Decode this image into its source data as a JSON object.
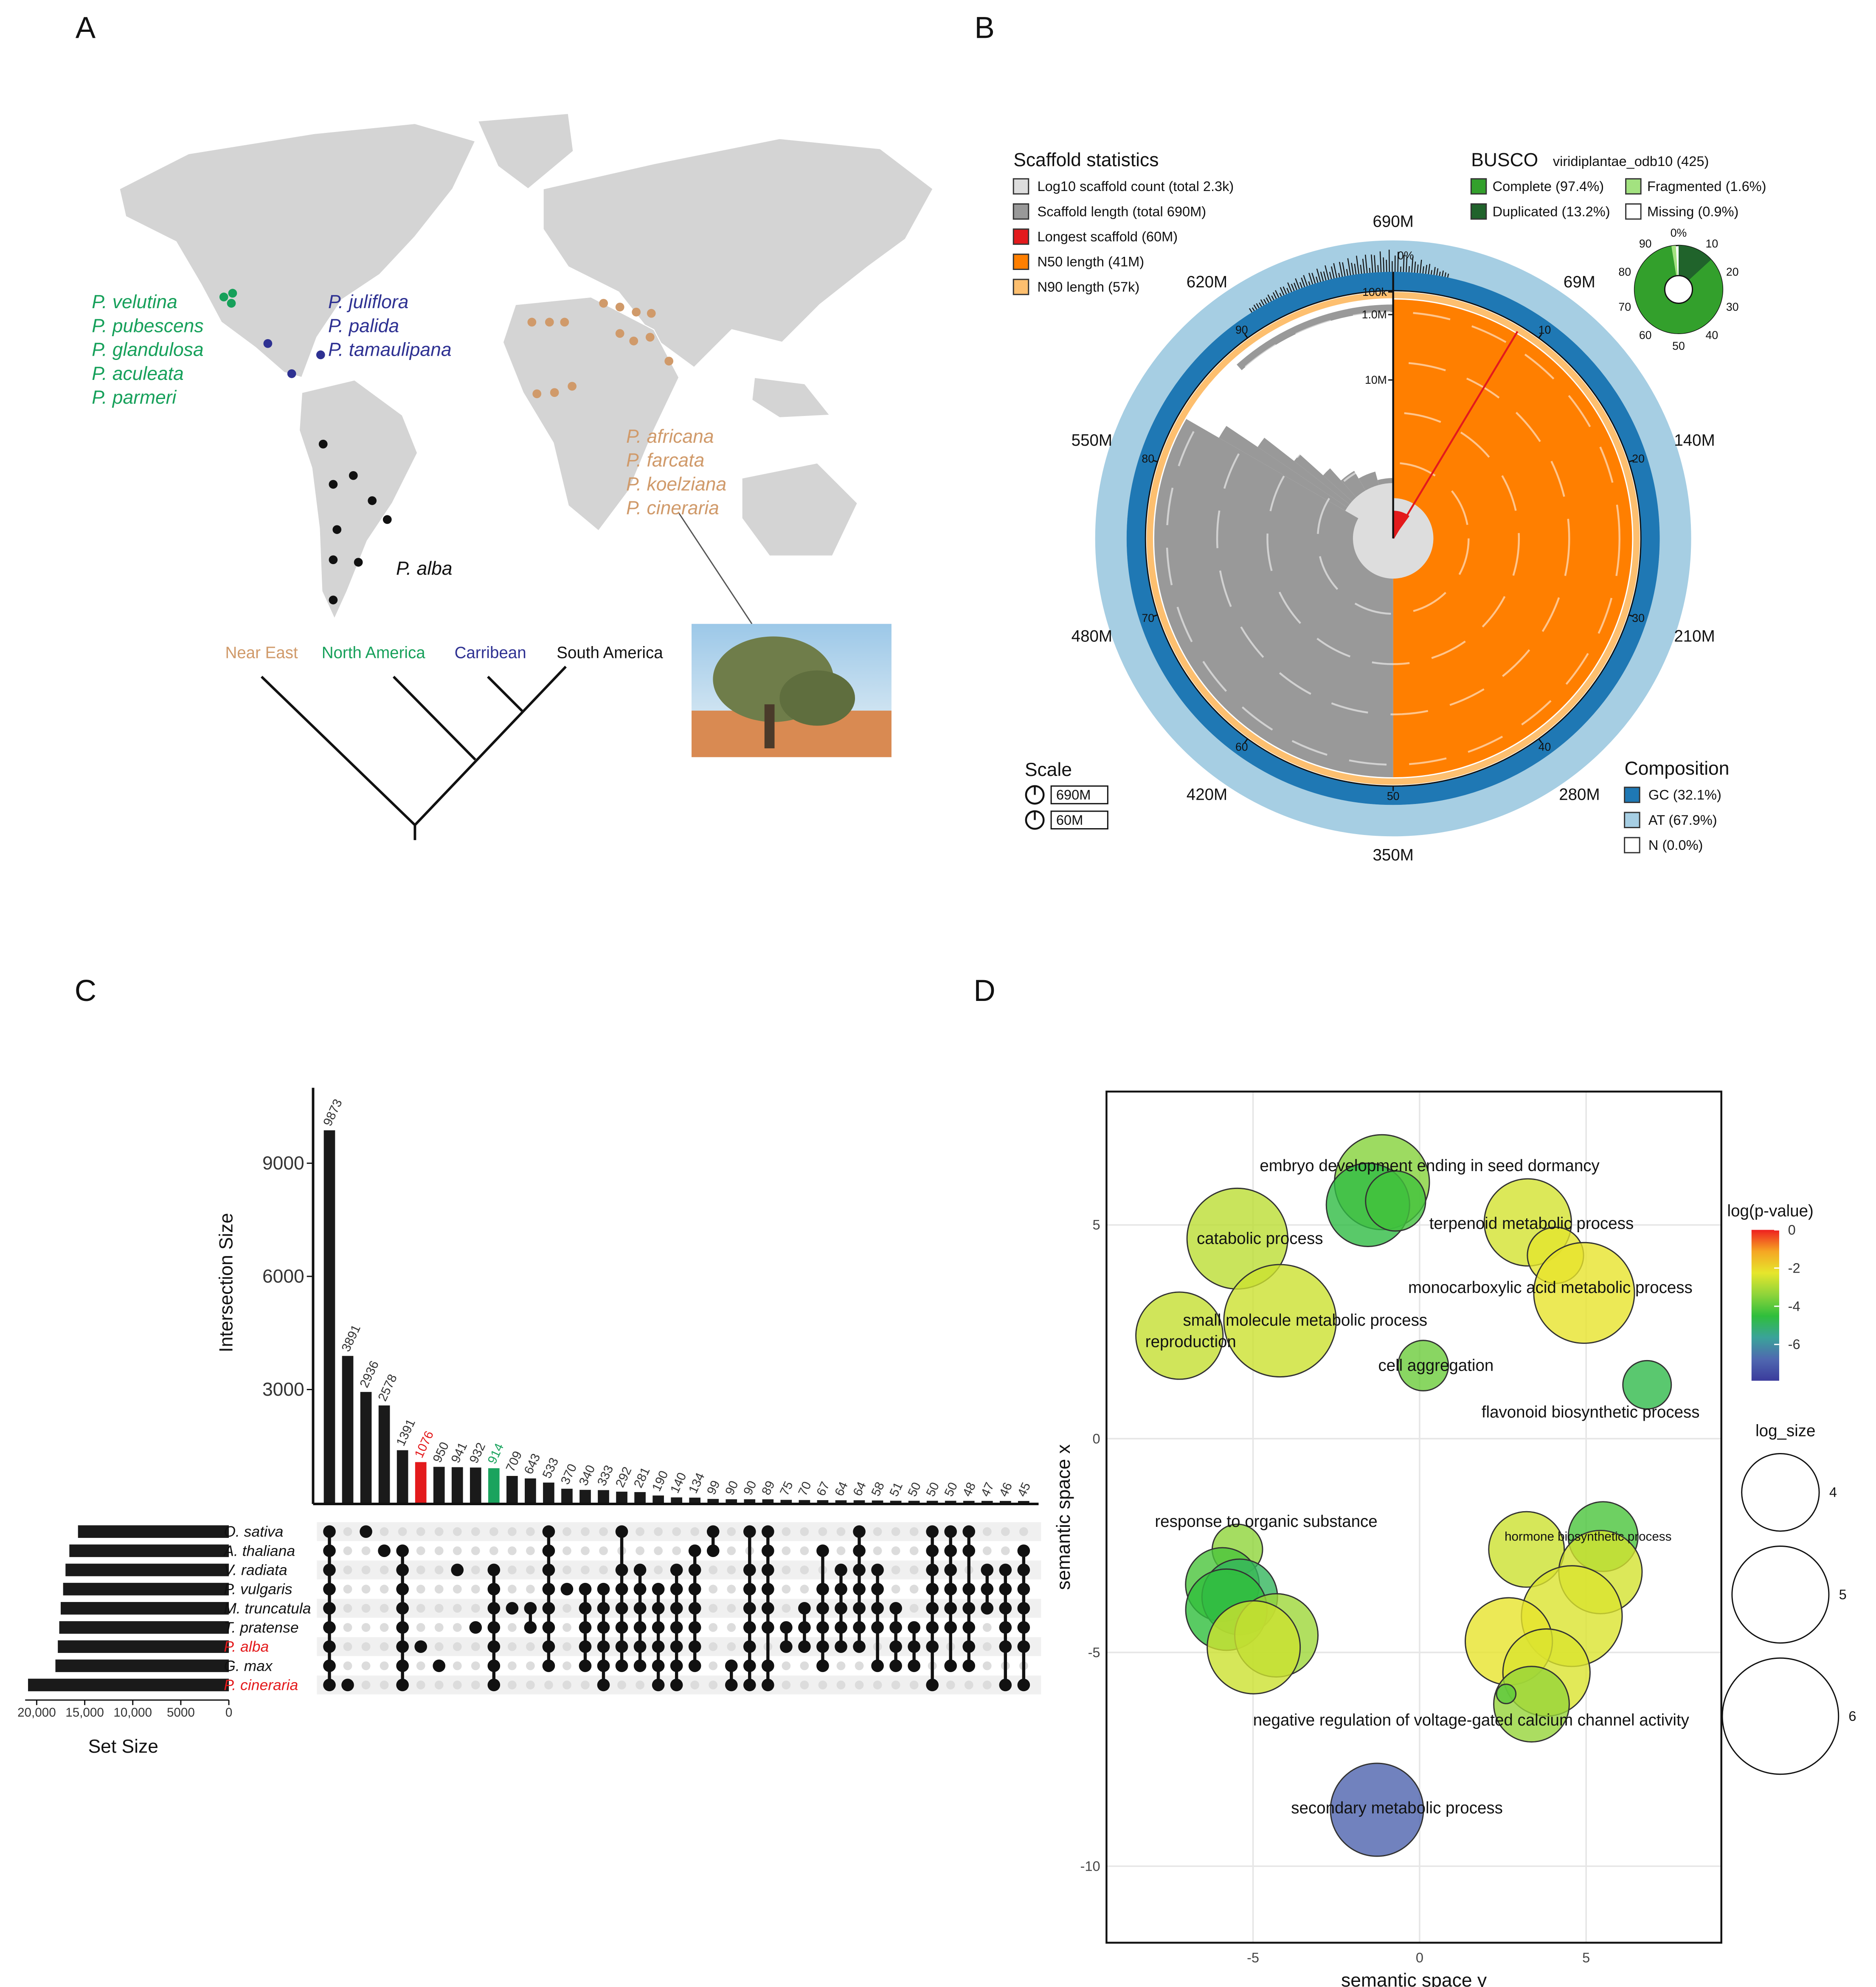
{
  "panel_labels": [
    "A",
    "B",
    "C",
    "D"
  ],
  "map": {
    "groups": [
      {
        "names": [
          "P. velutina",
          "P. pubescens",
          "P. glandulosa",
          "P. aculeata",
          "P. parmeri"
        ],
        "color": "#16a05a"
      },
      {
        "names": [
          "P. juliflora",
          "P. palida",
          "P. tamaulipana"
        ],
        "color": "#2e3192"
      },
      {
        "names": [
          "P. africana",
          "P. farcata",
          "P. koelziana",
          "P. cineraria"
        ],
        "color": "#d09a6a"
      },
      {
        "names": [
          "P. alba"
        ],
        "color": "#111111"
      }
    ],
    "tree_labels": [
      {
        "text": "Near East",
        "color": "#d09a6a"
      },
      {
        "text": "North America",
        "color": "#16a05a"
      },
      {
        "text": "Carribean",
        "color": "#2e3192"
      },
      {
        "text": "South America",
        "color": "#111111"
      }
    ]
  },
  "snail": {
    "scaffold_title": "Scaffold statistics",
    "scaffold_legend": [
      {
        "label": "Log10 scaffold count (total 2.3k)",
        "color": "#dddddd"
      },
      {
        "label": "Scaffold length (total 690M)",
        "color": "#999999"
      },
      {
        "label": "Longest scaffold (60M)",
        "color": "#e31a1c"
      },
      {
        "label": "N50 length (41M)",
        "color": "#ff7f00"
      },
      {
        "label": "N90 length (57k)",
        "color": "#fdbf6f"
      }
    ],
    "busco_title": "BUSCO",
    "busco_lineage": "viridiplantae_odb10 (425)",
    "busco": {
      "labels": [
        "Complete (97.4%)",
        "Fragmented (1.6%)",
        "Duplicated (13.2%)",
        "Missing (0.9%)"
      ],
      "values": [
        97.4,
        1.6,
        13.2,
        0.9
      ],
      "colors": [
        "#33a02c",
        "#a3e280",
        "#20632b",
        "#ffffff"
      ]
    },
    "busco_ticks": [
      "0%",
      "10",
      "20",
      "30",
      "40",
      "50",
      "60",
      "70",
      "80",
      "90"
    ],
    "outer_ticks": [
      "690M",
      "69M",
      "140M",
      "210M",
      "280M",
      "350M",
      "420M",
      "480M",
      "550M",
      "620M"
    ],
    "inner_ticks": [
      "0%",
      "10",
      "20",
      "30",
      "40",
      "50",
      "60",
      "70",
      "80",
      "90"
    ],
    "log_ticks": [
      "100k",
      "1.0M",
      "10M"
    ],
    "scale_title": "Scale",
    "scale_items": [
      "690M",
      "60M"
    ],
    "composition_title": "Composition",
    "composition_legend": [
      {
        "label": "GC (32.1%)",
        "color": "#1f78b4"
      },
      {
        "label": "AT (67.9%)",
        "color": "#a6cee3"
      },
      {
        "label": "N (0.0%)",
        "color": "#ffffff"
      }
    ]
  },
  "chart_data": [
    {
      "type": "upset",
      "y_label": "Intersection Size",
      "values": [
        9873,
        3891,
        2936,
        2578,
        1391,
        1076,
        950,
        941,
        932,
        914,
        709,
        643,
        533,
        370,
        340,
        333,
        292,
        281,
        190,
        140,
        134,
        99,
        90,
        90,
        89,
        75,
        70,
        67,
        64,
        64,
        58,
        51,
        50,
        50,
        50,
        48,
        47,
        46,
        45
      ],
      "colors": [
        "#1a1a1a",
        "#1a1a1a",
        "#1a1a1a",
        "#1a1a1a",
        "#1a1a1a",
        "#e31a1c",
        "#1a1a1a",
        "#1a1a1a",
        "#1a1a1a",
        "#1aa35e",
        "#1a1a1a",
        "#1a1a1a",
        "#1a1a1a",
        "#1a1a1a",
        "#1a1a1a",
        "#1a1a1a",
        "#1a1a1a",
        "#1a1a1a",
        "#1a1a1a",
        "#1a1a1a",
        "#1a1a1a",
        "#1a1a1a",
        "#1a1a1a",
        "#1a1a1a",
        "#1a1a1a",
        "#1a1a1a",
        "#1a1a1a",
        "#1a1a1a",
        "#1a1a1a",
        "#1a1a1a",
        "#1a1a1a",
        "#1a1a1a",
        "#1a1a1a",
        "#1a1a1a",
        "#1a1a1a",
        "#1a1a1a",
        "#1a1a1a",
        "#1a1a1a",
        "#1a1a1a"
      ],
      "membership": [
        [
          0,
          1,
          2,
          3,
          4,
          5,
          6,
          7,
          8
        ],
        [
          8
        ],
        [
          0
        ],
        [
          1
        ],
        [
          1,
          2,
          3,
          4,
          5,
          6,
          7,
          8
        ],
        [
          6
        ],
        [
          7
        ],
        [
          2
        ],
        [
          5
        ],
        [
          2,
          3,
          4,
          5,
          6,
          7,
          8
        ],
        [
          4
        ],
        [
          4,
          5
        ],
        [
          0,
          1,
          2,
          3,
          4,
          5,
          6,
          7
        ],
        [
          3
        ],
        [
          3,
          4,
          5,
          6,
          7
        ],
        [
          3,
          4,
          5,
          6,
          7,
          8
        ],
        [
          0,
          2,
          3,
          4,
          5,
          6,
          7
        ],
        [
          2,
          3,
          4,
          5,
          6,
          7
        ],
        [
          3,
          4,
          5,
          6,
          7,
          8
        ],
        [
          2,
          3,
          4,
          5,
          6,
          7,
          8
        ],
        [
          1,
          2,
          3,
          4,
          5,
          6,
          7
        ],
        [
          0,
          1
        ],
        [
          7,
          8
        ],
        [
          0,
          2,
          3,
          4,
          5,
          6,
          7,
          8
        ],
        [
          0,
          1,
          2,
          3,
          4,
          5,
          7,
          8
        ],
        [
          5,
          6
        ],
        [
          4,
          5,
          6
        ],
        [
          1,
          3,
          4,
          5,
          6,
          7
        ],
        [
          2,
          3,
          4,
          5,
          6
        ],
        [
          0,
          1,
          2,
          3,
          4,
          5,
          6
        ],
        [
          2,
          3,
          4,
          5,
          7
        ],
        [
          4,
          5,
          6,
          7
        ],
        [
          5,
          6,
          7
        ],
        [
          0,
          1,
          2,
          3,
          4,
          5,
          6,
          8
        ],
        [
          0,
          1,
          2,
          3,
          4,
          5,
          7
        ],
        [
          0,
          1,
          3,
          4,
          5,
          6,
          7
        ],
        [
          2,
          3,
          4
        ],
        [
          2,
          3,
          4,
          5,
          6,
          8
        ],
        [
          1,
          2,
          3,
          4,
          5,
          6,
          8
        ]
      ],
      "ylim": [
        0,
        11000
      ],
      "yticks": [
        3000,
        6000,
        9000
      ]
    },
    {
      "type": "bar",
      "orientation": "horizontal",
      "x_label": "Set Size",
      "categories": [
        "O. sativa",
        "A. thaliana",
        "V. radiata",
        "P. vulgaris",
        "M. truncatula",
        "T. pratense",
        "P. alba",
        "G. max",
        "P. cineraria"
      ],
      "label_colors": [
        "#111111",
        "#111111",
        "#111111",
        "#111111",
        "#111111",
        "#111111",
        "#e31a1c",
        "#111111",
        "#e31a1c"
      ],
      "values": [
        15700,
        16600,
        17000,
        17250,
        17500,
        17650,
        17800,
        18050,
        20900
      ],
      "color": "#1a1a1a",
      "xlim": [
        21200,
        0
      ],
      "xticks": [
        {
          "value": 20000,
          "label": "20,000"
        },
        {
          "value": 15000,
          "label": "15,000"
        },
        {
          "value": 10000,
          "label": "10,000"
        },
        5000,
        0
      ]
    },
    {
      "type": "bubble",
      "x_label": "semantic space y",
      "y_label": "semantic space x",
      "x": [
        -1.13,
        -1.55,
        -0.72,
        -5.47,
        -4.19,
        -7.21,
        0.11,
        3.25,
        4.08,
        4.94,
        6.83,
        -5.47,
        -5.92,
        -5.4,
        -5.8,
        -4.3,
        -4.98,
        3.21,
        5.51,
        5.43,
        4.57,
        2.68,
        3.81,
        3.36,
        2.6,
        -1.28
      ],
      "y": [
        6.0,
        5.47,
        5.56,
        4.68,
        2.76,
        2.41,
        1.71,
        5.06,
        4.29,
        3.41,
        1.26,
        -2.59,
        -3.41,
        -3.7,
        -4.0,
        -4.6,
        -4.88,
        -2.59,
        -2.29,
        -3.12,
        -4.15,
        -4.74,
        -5.47,
        -6.21,
        -5.97,
        -8.68
      ],
      "sizes": [
        4.9,
        4.3,
        3.1,
        5.2,
        5.8,
        4.5,
        2.6,
        4.5,
        2.9,
        5.2,
        2.5,
        2.6,
        3.8,
        3.9,
        4.2,
        4.3,
        4.8,
        3.9,
        3.6,
        4.3,
        5.2,
        4.5,
        4.5,
        3.9,
        1.0,
        4.8
      ],
      "log_pvalues": [
        -3.5,
        -4.6,
        -4.3,
        -2.8,
        -2.6,
        -2.7,
        -3.8,
        -2.5,
        -2.3,
        -2.2,
        -4.7,
        -3.4,
        -4.2,
        -4.9,
        -4.5,
        -3.2,
        -2.6,
        -2.6,
        -4.2,
        -2.5,
        -2.4,
        -2.2,
        -2.4,
        -3.3,
        -4.0,
        -6.9
      ],
      "labels": [
        "embryo development ending in seed dormancy",
        "terpenoid metabolic process",
        "catabolic process",
        "monocarboxylic acid metabolic process",
        "small molecule metabolic process",
        "reproduction",
        "cell aggregation",
        "flavonoid biosynthetic process",
        "response to organic substance",
        "hormone biosynthetic process",
        "negative regulation of voltage-gated calcium channel activity",
        "secondary metabolic process"
      ],
      "xlim": [
        -9.4,
        9.06
      ],
      "ylim": [
        -11.79,
        8.12
      ],
      "xticks": [
        -5,
        0,
        5
      ],
      "yticks": [
        -10,
        -5,
        0,
        5
      ],
      "grid": true,
      "color_title": "log(p-value)",
      "clim": [
        -7.9,
        0
      ],
      "cticks": [
        0,
        -2,
        -4,
        -6
      ],
      "colormap": [
        "#3b3b9c",
        "#4f68b0",
        "#3aa39a",
        "#2fbe3c",
        "#8fd43a",
        "#e6e62c",
        "#f5a623",
        "#ee2020"
      ],
      "size_title": "log_size",
      "size_ticks": [
        4,
        5,
        6
      ]
    }
  ]
}
